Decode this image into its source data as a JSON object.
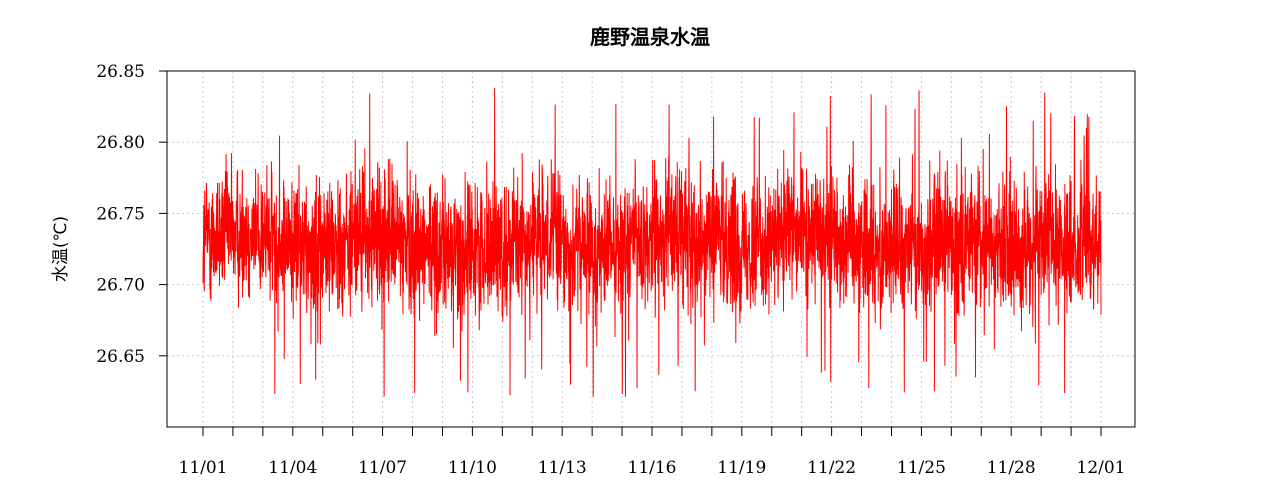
{
  "chart_data": {
    "type": "line",
    "title": "鹿野温泉水温",
    "xlabel": "",
    "ylabel": "水温(℃)",
    "x_range": [
      "11/01",
      "12/01"
    ],
    "x_tick_labels": [
      "11/01",
      "11/04",
      "11/07",
      "11/10",
      "11/13",
      "11/16",
      "11/19",
      "11/22",
      "11/25",
      "11/28",
      "12/01"
    ],
    "x_minor_tick_days": 1,
    "ylim": [
      26.6,
      26.85
    ],
    "y_ticks": [
      26.65,
      26.7,
      26.75,
      26.8,
      26.85
    ],
    "y_tick_labels": [
      "26.65",
      "26.70",
      "26.75",
      "26.80",
      "26.85"
    ],
    "grid": true,
    "legend": "none",
    "series": [
      {
        "color": "#ff0000",
        "x_start": "11/01",
        "x_end": "12/01",
        "mean": 26.73,
        "typical_range": [
          26.66,
          26.8
        ],
        "min": 26.61,
        "max": 26.84
      }
    ]
  }
}
